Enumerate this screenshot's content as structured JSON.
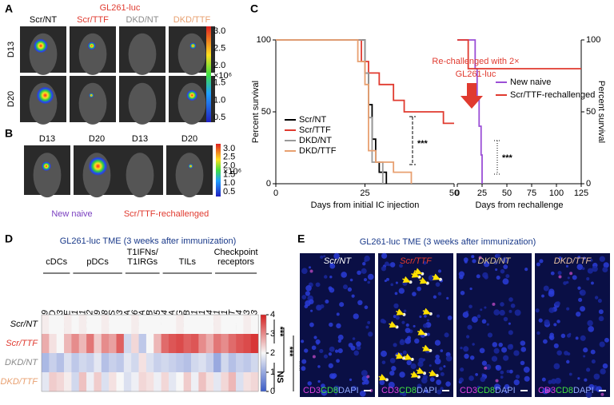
{
  "panel_a": {
    "label": "A",
    "title": "GL261-luc",
    "columns": [
      "Scr/NT",
      "Scr/TTF",
      "DKD/NT",
      "DKD/TTF"
    ],
    "column_colors": [
      "#000000",
      "#e03a2f",
      "#8a8a8a",
      "#e8a070"
    ],
    "rows": [
      "D13",
      "D20"
    ],
    "colorbar_ticks": [
      "3.0",
      "2.5",
      "2.0",
      "1.5",
      "1.0",
      "0.5"
    ],
    "colorbar_unit": "×10⁶"
  },
  "panel_b": {
    "label": "B",
    "days": [
      "D13",
      "D20",
      "D13",
      "D20"
    ],
    "groups": [
      "New naive",
      "Scr/TTF-rechallenged"
    ],
    "group_colors": [
      "#7a3fc0",
      "#e03a2f"
    ],
    "colorbar_ticks": [
      "3.0",
      "2.5",
      "2.0",
      "1.5",
      "1.0",
      "0.5"
    ],
    "colorbar_unit": "×10⁶"
  },
  "panel_c": {
    "label": "C",
    "annotation": [
      "Re-challenged with 2×",
      "GL261-luc"
    ]
  },
  "chart_data": [
    {
      "type": "line",
      "ylabel": "Percent survival",
      "xlabel": "Days from initial IC injection",
      "xlim": [
        0,
        50
      ],
      "ylim": [
        0,
        100
      ],
      "xticks": [
        0,
        25,
        50
      ],
      "yticks": [
        0,
        50,
        100
      ],
      "significance": "***",
      "series": [
        {
          "name": "Scr/NT",
          "color": "#000000",
          "x": [
            0,
            25,
            25,
            26,
            26,
            27,
            27,
            28,
            28,
            29,
            29,
            31,
            31
          ],
          "values": [
            100,
            100,
            77,
            77,
            55,
            55,
            31,
            31,
            15,
            15,
            8,
            8,
            0
          ]
        },
        {
          "name": "Scr/TTF",
          "color": "#e03a2f",
          "x": [
            0,
            24,
            24,
            26,
            26,
            29,
            29,
            33,
            33,
            36,
            36,
            47,
            47,
            50
          ],
          "values": [
            100,
            100,
            85,
            85,
            77,
            77,
            69,
            69,
            58,
            58,
            50,
            50,
            42,
            42
          ]
        },
        {
          "name": "DKD/NT",
          "color": "#9a9a9a",
          "x": [
            0,
            25,
            25,
            26,
            26,
            27,
            27,
            30,
            30
          ],
          "values": [
            100,
            100,
            77,
            77,
            46,
            46,
            15,
            15,
            0
          ]
        },
        {
          "name": "DKD/TTF",
          "color": "#e8a070",
          "x": [
            0,
            23,
            23,
            25,
            25,
            26,
            26,
            28,
            28,
            33,
            33,
            38,
            38
          ],
          "values": [
            100,
            100,
            85,
            85,
            69,
            69,
            23,
            23,
            15,
            15,
            8,
            8,
            0
          ]
        }
      ]
    },
    {
      "type": "line",
      "ylabel": "Percent survival",
      "xlabel": "Days from rechallenge",
      "xlim": [
        0,
        125
      ],
      "ylim": [
        0,
        100
      ],
      "xticks": [
        0,
        25,
        50,
        75,
        100,
        125
      ],
      "yticks": [
        0,
        50,
        100
      ],
      "y_axis_side": "right",
      "significance": "***",
      "series": [
        {
          "name": "New naive",
          "color": "#9b4fd6",
          "x": [
            0,
            18,
            18,
            20,
            20,
            22,
            22,
            24,
            24,
            25,
            25
          ],
          "values": [
            100,
            100,
            80,
            80,
            60,
            60,
            40,
            40,
            20,
            20,
            0
          ]
        },
        {
          "name": "Scr/TTF-rechallenged",
          "color": "#e03a2f",
          "x": [
            0,
            11,
            11,
            125
          ],
          "values": [
            100,
            100,
            80,
            80
          ]
        }
      ]
    }
  ],
  "panel_d": {
    "label": "D",
    "title": "GL261-luc TME (3 weeks after immunization)",
    "groups": [
      {
        "name": [
          "cDCs"
        ],
        "genes": [
          "CLEC9",
          "HBD",
          "BATF3",
          "ITGAE"
        ]
      },
      {
        "name": [
          "pDCs"
        ],
        "genes": [
          "KLK1",
          "EGR1",
          "BST2",
          "CCR9",
          "IRF8",
          "PTPRS",
          "SMPD3"
        ]
      },
      {
        "name": [
          "T1IFNs/",
          "T1IRGs"
        ],
        "genes": [
          "IL1A",
          "IL6",
          "IFNA",
          "IFNB",
          "ISG15"
        ]
      },
      {
        "name": [
          "TILs"
        ],
        "genes": [
          "CD4",
          "CD8A",
          "IFNG",
          "GZMB",
          "PRF1",
          "CXCR1",
          "CCL4"
        ]
      },
      {
        "name": [
          "Checkpoint",
          "receptors"
        ],
        "genes": [
          "PD1",
          "PDL1",
          "TIGIT",
          "CTLA4",
          "TIM3",
          "LAG3"
        ]
      }
    ],
    "rows": [
      "Scr/NT",
      "Scr/TTF",
      "DKD/NT",
      "DKD/TTF"
    ],
    "row_colors": [
      "#000000",
      "#e03a2f",
      "#8a8a8a",
      "#e8a070"
    ],
    "values": [
      [
        2.1,
        2.0,
        2.0,
        2.1,
        2.0,
        2.1,
        2.0,
        2.0,
        2.1,
        2.0,
        2.0,
        2.0,
        2.1,
        2.0,
        2.0,
        2.0,
        2.0,
        2.0,
        2.1,
        2.0,
        2.0,
        2.0,
        2.0,
        2.1,
        2.0,
        2.0,
        2.0,
        2.1,
        2.0
      ],
      [
        2.7,
        2.2,
        2.0,
        2.6,
        3.0,
        2.6,
        3.2,
        2.4,
        3.0,
        2.8,
        3.4,
        1.6,
        2.3,
        1.4,
        2.0,
        2.6,
        3.3,
        3.5,
        3.6,
        3.4,
        3.5,
        3.0,
        2.7,
        3.2,
        3.0,
        3.3,
        3.5,
        3.6,
        3.8
      ],
      [
        1.2,
        1.5,
        1.3,
        1.7,
        1.4,
        1.6,
        1.5,
        1.8,
        1.3,
        1.5,
        1.4,
        1.8,
        1.6,
        2.2,
        1.7,
        1.5,
        1.6,
        1.5,
        1.4,
        1.3,
        1.6,
        1.7,
        1.5,
        1.0,
        1.6,
        1.3,
        1.5,
        1.4,
        1.6
      ],
      [
        1.8,
        2.4,
        2.3,
        2.1,
        1.6,
        2.5,
        1.9,
        2.4,
        1.7,
        2.2,
        2.0,
        1.7,
        1.9,
        2.3,
        2.2,
        1.9,
        2.3,
        1.8,
        2.0,
        2.4,
        1.9,
        2.5,
        2.2,
        1.8,
        2.3,
        2.6,
        1.7,
        2.2,
        2.3
      ]
    ],
    "colorbar_lim": [
      0,
      4
    ],
    "colorbar_ticks": [
      0,
      1,
      2,
      3,
      4
    ],
    "colormap": [
      "#3a5bc7",
      "#f7f7f7",
      "#d42020"
    ],
    "stats": [
      "***",
      "***",
      "***",
      "NS"
    ]
  },
  "panel_e": {
    "label": "E",
    "title": "GL261-luc TME (3 weeks after immunization)",
    "images": [
      "Scr/NT",
      "Scr/TTF",
      "DKD/NT",
      "DKD/TTF"
    ],
    "image_colors": [
      "#ffffff",
      "#e03a2f",
      "#d8c090",
      "#e8c0a0"
    ],
    "stains": [
      "CD3",
      "CD8",
      "DAPI"
    ],
    "stain_colors": [
      "#e040e0",
      "#40e040",
      "#8fa8ff"
    ]
  }
}
